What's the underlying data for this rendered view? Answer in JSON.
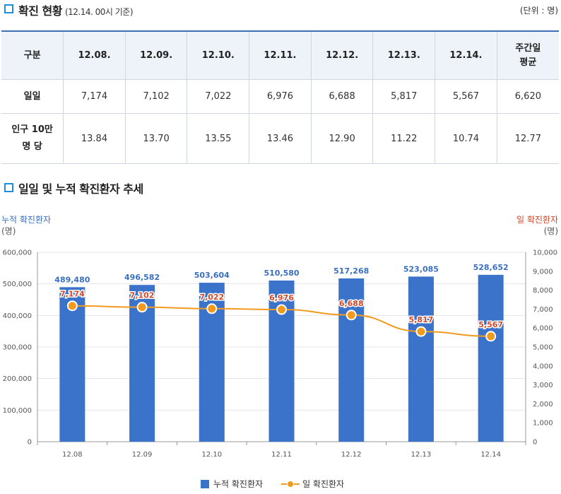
{
  "section1": {
    "title": "확진 현황",
    "note": "(12.14. 00시 기준)",
    "unit": "(단위 : 명)"
  },
  "table": {
    "headers": [
      "구분",
      "12.08.",
      "12.09.",
      "12.10.",
      "12.11.",
      "12.12.",
      "12.13.",
      "12.14.",
      "주간일",
      "평균"
    ],
    "rows": [
      {
        "label": "일일",
        "values": [
          "7,174",
          "7,102",
          "7,022",
          "6,976",
          "6,688",
          "5,817",
          "5,567",
          "6,620"
        ]
      },
      {
        "label1": "인구 10만",
        "label2": "명 당",
        "values": [
          "13.84",
          "13.70",
          "13.55",
          "13.46",
          "12.90",
          "11.22",
          "10.74",
          "12.77"
        ]
      }
    ]
  },
  "section2": {
    "title": "일일 및 누적 확진환자 추세"
  },
  "chart_labels": {
    "left_title": "누적 확진환자",
    "left_unit": "(명)",
    "right_title": "일 확진환자",
    "right_unit": "(명)"
  },
  "legend": {
    "bar": "누적 확진환자",
    "line": "일 확진환자"
  },
  "chart_data": {
    "type": "bar",
    "categories": [
      "12.08",
      "12.09",
      "12.10",
      "12.11",
      "12.12",
      "12.13",
      "12.14"
    ],
    "series": [
      {
        "name": "누적 확진환자",
        "type": "bar",
        "axis": "left",
        "color": "#3a73c9",
        "values": [
          489480,
          496582,
          503604,
          510580,
          517268,
          523085,
          528652
        ],
        "labels": [
          "489,480",
          "496,582",
          "503,604",
          "510,580",
          "517,268",
          "523,085",
          "528,652"
        ]
      },
      {
        "name": "일 확진환자",
        "type": "line",
        "axis": "right",
        "color": "#f39a1e",
        "values": [
          7174,
          7102,
          7022,
          6976,
          6688,
          5817,
          5567
        ],
        "labels": [
          "7,174",
          "7,102",
          "7,022",
          "6,976",
          "6,688",
          "5,817",
          "5,567"
        ]
      }
    ],
    "y_left": {
      "min": 0,
      "max": 600000,
      "ticks": [
        "0",
        "100,000",
        "200,000",
        "300,000",
        "400,000",
        "500,000",
        "600,000"
      ]
    },
    "y_right": {
      "min": 0,
      "max": 10000,
      "ticks": [
        "0",
        "1,000",
        "2,000",
        "3,000",
        "4,000",
        "5,000",
        "6,000",
        "7,000",
        "8,000",
        "9,000",
        "10,000"
      ]
    },
    "label_colors": {
      "bar": "#3a6fc0",
      "line": "#d0492b"
    }
  }
}
